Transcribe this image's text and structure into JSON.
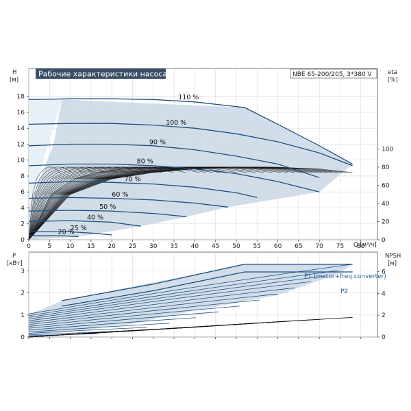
{
  "title": "Рабочие характеристики насоса",
  "model": "NBE 65-200/205, 3*380 V",
  "colors": {
    "curve": "#1f4f80",
    "fill": "#ccd9e6",
    "fill_light": "#e8f0f7",
    "efficiency": "#111111",
    "title_bg": "#3a4f66"
  },
  "chart_data": [
    {
      "type": "line",
      "name": "head_efficiency",
      "x_label": "Q [м³/ч]",
      "y_label_left": "H [м]",
      "y_label_right": "eta [%]",
      "x_ticks": [
        0,
        5,
        10,
        15,
        20,
        25,
        30,
        35,
        40,
        45,
        50,
        55,
        60,
        65,
        70,
        75,
        80
      ],
      "y_ticks_left": [
        0,
        2,
        4,
        6,
        8,
        10,
        12,
        14,
        16,
        18
      ],
      "y_ticks_right": [
        0,
        20,
        40,
        60,
        80,
        100
      ],
      "x_range": [
        0,
        84
      ],
      "y_range_left": [
        0,
        21.5
      ],
      "head_curves": [
        {
          "label": "110 %",
          "points": [
            [
              0,
              17.6
            ],
            [
              10,
              17.7
            ],
            [
              20,
              17.7
            ],
            [
              30,
              17.6
            ],
            [
              40,
              17.3
            ],
            [
              52,
              16.6
            ],
            [
              60,
              14.5
            ],
            [
              70,
              11.8
            ],
            [
              78,
              9.5
            ]
          ]
        },
        {
          "label": "100 %",
          "points": [
            [
              0,
              14.5
            ],
            [
              10,
              14.6
            ],
            [
              20,
              14.6
            ],
            [
              30,
              14.4
            ],
            [
              40,
              14.0
            ],
            [
              50,
              13.3
            ],
            [
              60,
              12.3
            ],
            [
              70,
              10.9
            ],
            [
              78,
              9.3
            ]
          ]
        },
        {
          "label": "90 %",
          "points": [
            [
              0,
              11.8
            ],
            [
              10,
              12.0
            ],
            [
              20,
              12.0
            ],
            [
              30,
              11.8
            ],
            [
              40,
              11.3
            ],
            [
              50,
              10.5
            ],
            [
              60,
              9.5
            ],
            [
              70,
              7.8
            ]
          ]
        },
        {
          "label": "80 %",
          "points": [
            [
              0,
              9.3
            ],
            [
              10,
              9.5
            ],
            [
              20,
              9.5
            ],
            [
              30,
              9.3
            ],
            [
              40,
              8.9
            ],
            [
              50,
              8.3
            ],
            [
              60,
              7.3
            ],
            [
              70,
              6.0
            ]
          ]
        },
        {
          "label": "70 %",
          "points": [
            [
              0,
              7.1
            ],
            [
              10,
              7.3
            ],
            [
              20,
              7.2
            ],
            [
              30,
              7.0
            ],
            [
              40,
              6.6
            ],
            [
              50,
              5.9
            ],
            [
              55,
              5.3
            ]
          ]
        },
        {
          "label": "60 %",
          "points": [
            [
              0,
              5.2
            ],
            [
              10,
              5.3
            ],
            [
              20,
              5.2
            ],
            [
              30,
              5.0
            ],
            [
              40,
              4.6
            ],
            [
              48,
              4.1
            ]
          ]
        },
        {
          "label": "50 %",
          "points": [
            [
              0,
              3.6
            ],
            [
              10,
              3.7
            ],
            [
              20,
              3.6
            ],
            [
              30,
              3.3
            ],
            [
              38,
              2.9
            ]
          ]
        },
        {
          "label": "40 %",
          "points": [
            [
              0,
              2.3
            ],
            [
              10,
              2.4
            ],
            [
              20,
              2.2
            ],
            [
              27,
              1.7
            ]
          ]
        },
        {
          "label": "25 %",
          "points": [
            [
              0,
              1.0
            ],
            [
              10,
              1.0
            ],
            [
              16,
              0.8
            ],
            [
              20,
              0.6
            ]
          ]
        },
        {
          "label": "20 %",
          "points": [
            [
              0,
              0.5
            ],
            [
              8,
              0.5
            ],
            [
              12,
              0.4
            ]
          ]
        }
      ],
      "operating_area": [
        [
          8,
          17.6
        ],
        [
          52,
          16.6
        ],
        [
          78,
          9.5
        ],
        [
          70,
          6.0
        ],
        [
          48,
          4.1
        ],
        [
          38,
          2.9
        ],
        [
          27,
          1.7
        ],
        [
          12,
          0.4
        ],
        [
          0,
          0
        ],
        [
          0,
          4
        ],
        [
          6,
          12
        ]
      ],
      "efficiency_curve_points": [
        [
          0,
          0
        ],
        [
          10,
          50
        ],
        [
          20,
          67
        ],
        [
          30,
          74
        ],
        [
          40,
          78
        ],
        [
          50,
          80
        ],
        [
          60,
          80
        ],
        [
          70,
          78
        ],
        [
          78,
          74
        ]
      ],
      "efficiency_scale_factors": [
        0.18,
        0.25,
        0.32,
        0.38,
        0.45,
        0.52,
        0.58,
        0.65,
        0.72,
        0.78,
        0.85,
        0.92,
        1.0,
        1.04,
        1.08,
        1.12,
        1.17,
        1.22,
        1.28,
        1.33,
        1.38,
        1.43,
        1.48,
        1.52,
        1.56,
        1.6,
        1.63,
        1.66,
        1.69,
        1.72,
        1.75,
        1.78,
        1.81,
        1.84,
        1.87,
        1.9
      ]
    },
    {
      "type": "line",
      "name": "power_npsh",
      "x_label": "Q [м³/ч]",
      "y_label_left": "P [кВт]",
      "y_label_right": "NPSH [м]",
      "x_ticks": [
        0,
        5,
        10,
        15,
        20,
        25,
        30,
        35,
        40,
        45,
        50,
        55,
        60,
        65,
        70,
        75,
        80
      ],
      "y_ticks_left": [
        0,
        1,
        2,
        3
      ],
      "y_ticks_right": [
        0,
        2,
        4,
        6
      ],
      "x_range": [
        0,
        84
      ],
      "y_range_left": [
        0,
        3.85
      ],
      "y_range_right": [
        0,
        7.8
      ],
      "series": [
        {
          "name": "P1 (motor+freq.converter)",
          "points": [
            [
              8,
              1.65
            ],
            [
              30,
              2.4
            ],
            [
              52,
              3.3
            ],
            [
              78,
              3.3
            ]
          ]
        },
        {
          "name": "P2",
          "points": [
            [
              8,
              1.4
            ],
            [
              30,
              2.1
            ],
            [
              52,
              2.95
            ],
            [
              78,
              2.95
            ]
          ]
        }
      ],
      "power_area": [
        [
          8,
          1.65
        ],
        [
          52,
          3.3
        ],
        [
          78,
          3.3
        ],
        [
          75,
          2.9
        ],
        [
          60,
          1.9
        ],
        [
          40,
          1.2
        ],
        [
          25,
          0.6
        ],
        [
          8,
          0.2
        ],
        [
          0,
          0
        ],
        [
          0,
          1.0
        ]
      ],
      "npsh_curve_points": [
        [
          0,
          0
        ],
        [
          20,
          0.5
        ],
        [
          40,
          0.9
        ],
        [
          60,
          1.4
        ],
        [
          78,
          1.8
        ]
      ]
    }
  ]
}
